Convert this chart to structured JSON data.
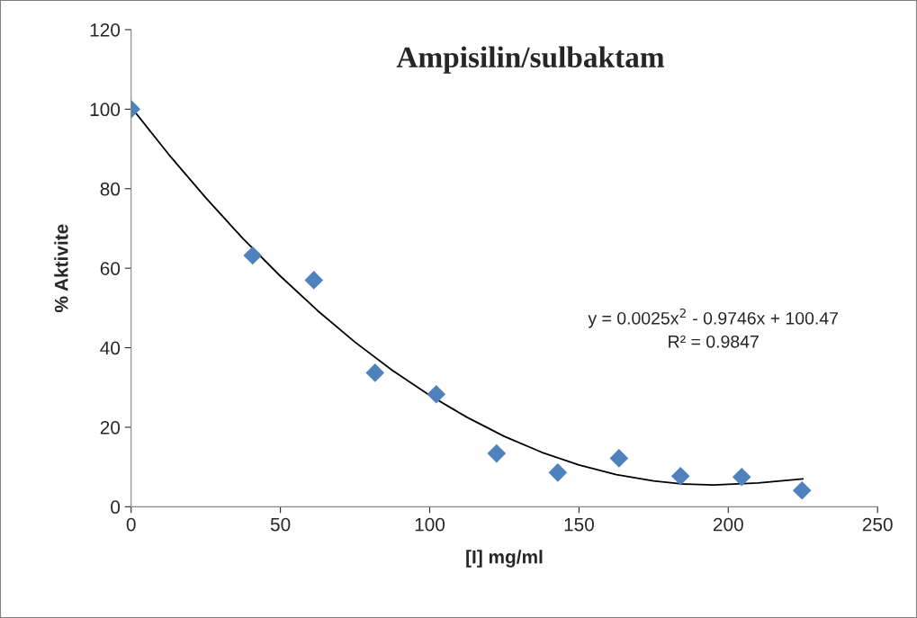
{
  "chart_data": {
    "type": "scatter",
    "title": "Ampisilin/sulbaktam",
    "xlabel": "[I] mg/ml",
    "ylabel": "% Aktivite",
    "xlim": [
      0,
      250
    ],
    "ylim": [
      0,
      120
    ],
    "xticks": [
      0,
      50,
      100,
      150,
      200,
      250
    ],
    "yticks": [
      0,
      20,
      40,
      60,
      80,
      100,
      120
    ],
    "grid": false,
    "legend": false,
    "marker": "diamond",
    "series": [
      {
        "color": "#4f81bd",
        "x": [
          0,
          40.7,
          61.2,
          81.7,
          102.2,
          122.4,
          142.9,
          163.4,
          184,
          204.5,
          224.7
        ],
        "values": [
          100,
          63.2,
          57,
          33.7,
          28.3,
          13.4,
          8.6,
          12.2,
          7.7,
          7.5,
          4.1
        ]
      },
      {
        "type": "line",
        "color": "#000000",
        "line_style": "solid",
        "marker": "none",
        "x": [
          0,
          12.5,
          25,
          37.5,
          50,
          62.5,
          75,
          87.5,
          100,
          112.5,
          125,
          137.5,
          150,
          162.5,
          175,
          185,
          195,
          210,
          225
        ],
        "values": [
          100.5,
          88.7,
          77.7,
          67.4,
          58,
          49.3,
          41.4,
          34.3,
          28,
          22.5,
          17.7,
          13.7,
          10.5,
          8.1,
          6.5,
          5.7,
          5.5,
          6,
          7
        ]
      }
    ],
    "annotations": [
      "y = 0.0025x$^{2}$ - 0.9746x + 100.47",
      "R² = 0.9847"
    ]
  }
}
